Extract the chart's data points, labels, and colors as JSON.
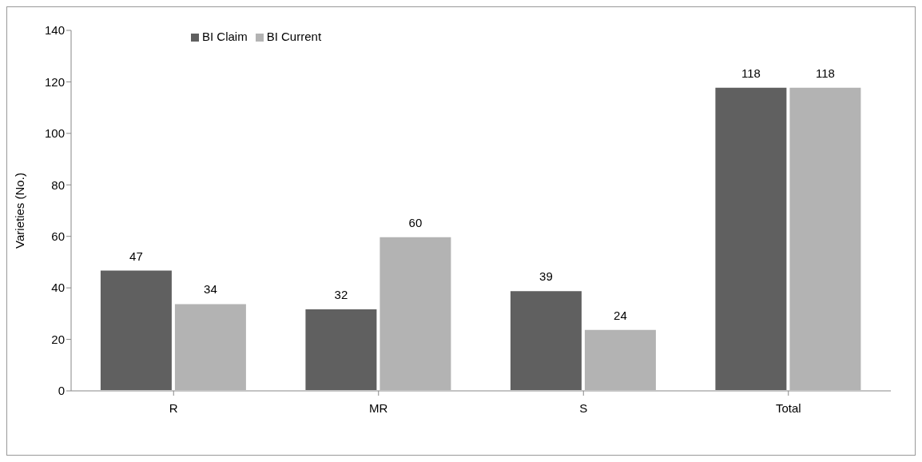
{
  "chart_data": {
    "type": "bar",
    "ylabel": "Varieties (No.)",
    "categories": [
      "R",
      "MR",
      "S",
      "Total"
    ],
    "series": [
      {
        "name": "BI Claim",
        "color": "#606060",
        "values": [
          47,
          32,
          39,
          118
        ]
      },
      {
        "name": "BI Current",
        "color": "#b3b3b3",
        "values": [
          34,
          60,
          24,
          118
        ]
      }
    ],
    "ylim": [
      0,
      140
    ],
    "yticks": [
      0,
      20,
      40,
      60,
      80,
      100,
      120,
      140
    ],
    "data_labels": true,
    "legend": "top left",
    "grid": false
  }
}
